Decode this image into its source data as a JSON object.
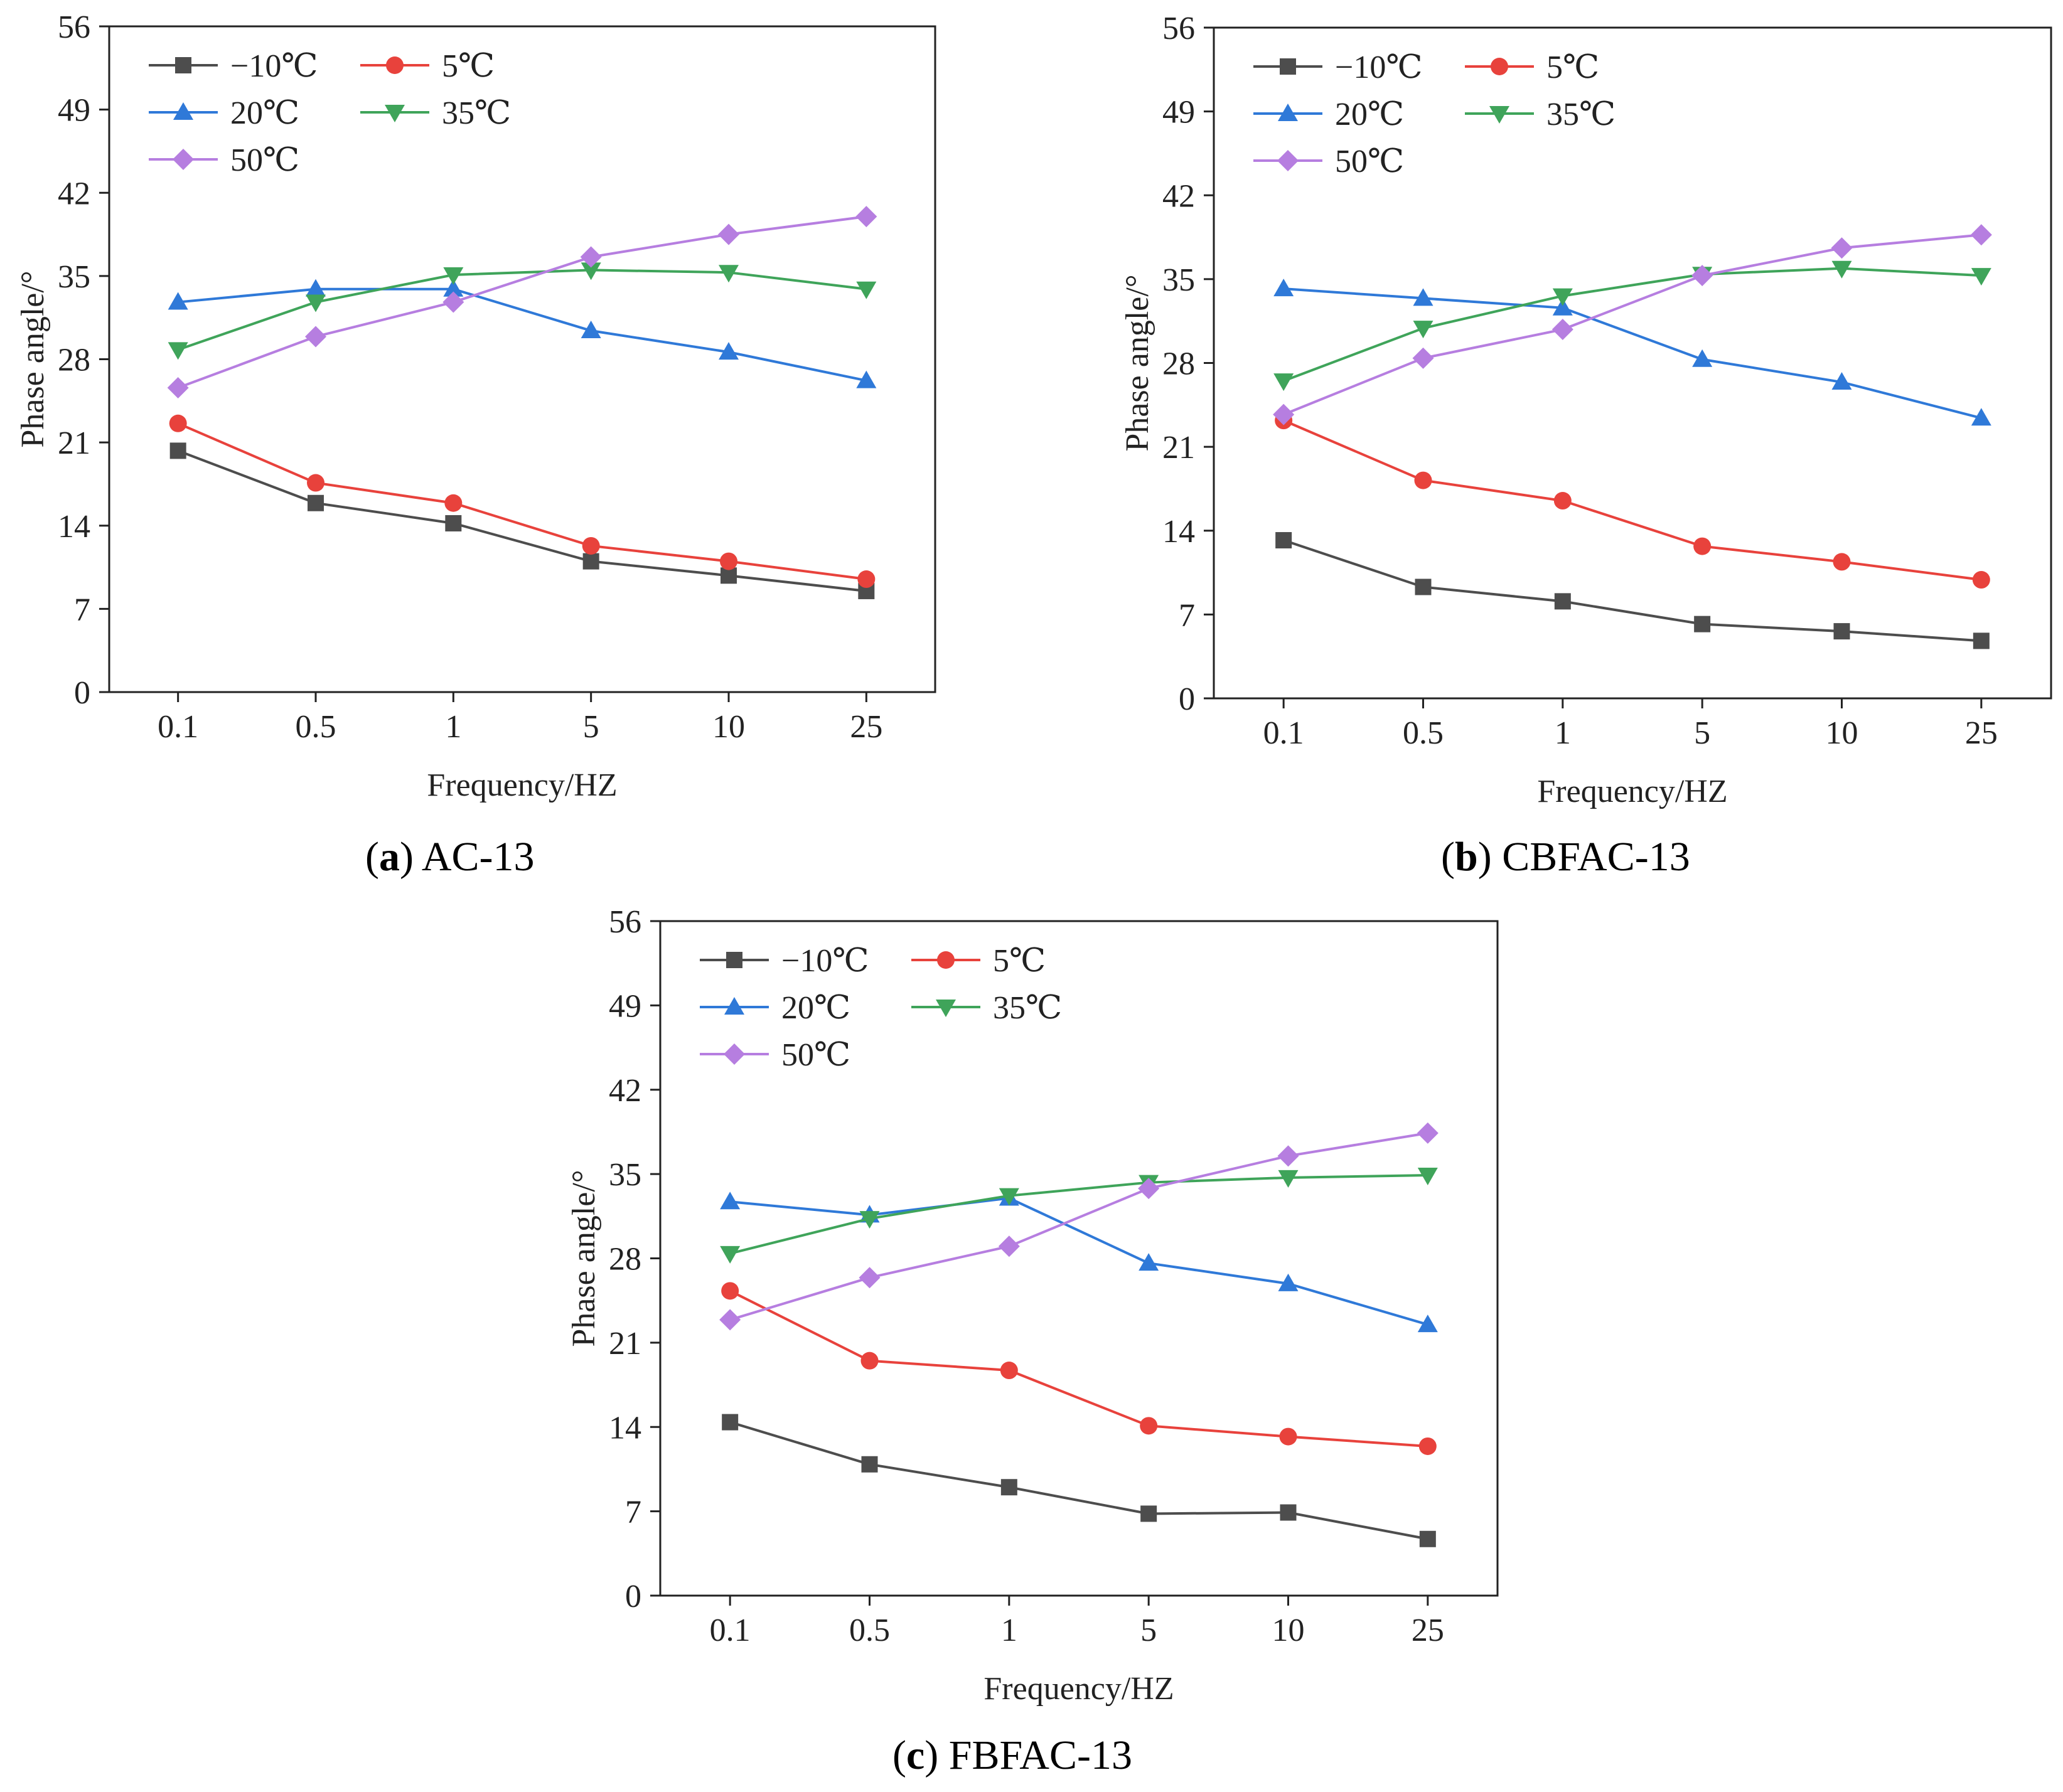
{
  "figure": {
    "panels": [
      {
        "letter": "a",
        "name": "AC-13"
      },
      {
        "letter": "b",
        "name": "CBFAC-13"
      },
      {
        "letter": "c",
        "name": "FBFAC-13"
      }
    ]
  },
  "series_style": [
    {
      "name": "−10℃",
      "color": "#4d4d4d",
      "marker": "square"
    },
    {
      "name": "5℃",
      "color": "#e8423c",
      "marker": "circle"
    },
    {
      "name": "20℃",
      "color": "#2f79d8",
      "marker": "triangle-up"
    },
    {
      "name": "35℃",
      "color": "#3fa45a",
      "marker": "triangle-down"
    },
    {
      "name": "50℃",
      "color": "#b67ee0",
      "marker": "diamond"
    }
  ],
  "chart_data": [
    {
      "type": "line",
      "title": "(a) AC-13",
      "xlabel": "Frequency/HZ",
      "ylabel": "Phase angle/°",
      "categories": [
        "0.1",
        "0.5",
        "1",
        "5",
        "10",
        "25"
      ],
      "ylim": [
        0,
        56
      ],
      "yticks": [
        "0",
        "7",
        "14",
        "21",
        "28",
        "35",
        "42",
        "49",
        "56"
      ],
      "series": [
        {
          "name": "−10℃",
          "values": [
            20.3,
            15.9,
            14.2,
            11.0,
            9.8,
            8.5
          ]
        },
        {
          "name": "5℃",
          "values": [
            22.6,
            17.6,
            15.9,
            12.3,
            11.0,
            9.5
          ]
        },
        {
          "name": "20℃",
          "values": [
            32.8,
            33.9,
            33.9,
            30.4,
            28.6,
            26.2
          ]
        },
        {
          "name": "35℃",
          "values": [
            28.8,
            32.8,
            35.1,
            35.5,
            35.3,
            33.9
          ]
        },
        {
          "name": "50℃",
          "values": [
            25.6,
            29.9,
            32.8,
            36.6,
            38.5,
            40.0
          ]
        }
      ]
    },
    {
      "type": "line",
      "title": "(b) CBFAC-13",
      "xlabel": "Frequency/HZ",
      "ylabel": "Phase angle/°",
      "categories": [
        "0.1",
        "0.5",
        "1",
        "5",
        "10",
        "25"
      ],
      "ylim": [
        0,
        56
      ],
      "yticks": [
        "0",
        "7",
        "14",
        "21",
        "28",
        "35",
        "42",
        "49",
        "56"
      ],
      "series": [
        {
          "name": "−10℃",
          "values": [
            13.2,
            9.3,
            8.1,
            6.2,
            5.6,
            4.8
          ]
        },
        {
          "name": "5℃",
          "values": [
            23.2,
            18.2,
            16.5,
            12.7,
            11.4,
            9.9
          ]
        },
        {
          "name": "20℃",
          "values": [
            34.2,
            33.4,
            32.6,
            28.3,
            26.4,
            23.4
          ]
        },
        {
          "name": "35℃",
          "values": [
            26.5,
            30.9,
            33.6,
            35.4,
            35.9,
            35.3
          ]
        },
        {
          "name": "50℃",
          "values": [
            23.7,
            28.4,
            30.8,
            35.3,
            37.6,
            38.7
          ]
        }
      ]
    },
    {
      "type": "line",
      "title": "(c) FBFAC-13",
      "xlabel": "Frequency/HZ",
      "ylabel": "Phase angle/°",
      "categories": [
        "0.1",
        "0.5",
        "1",
        "5",
        "10",
        "25"
      ],
      "ylim": [
        0,
        56
      ],
      "yticks": [
        "0",
        "7",
        "14",
        "21",
        "28",
        "35",
        "42",
        "49",
        "56"
      ],
      "series": [
        {
          "name": "−10℃",
          "values": [
            14.4,
            10.9,
            9.0,
            6.8,
            6.9,
            4.7
          ]
        },
        {
          "name": "5℃",
          "values": [
            25.3,
            19.5,
            18.7,
            14.1,
            13.2,
            12.4
          ]
        },
        {
          "name": "20℃",
          "values": [
            32.7,
            31.6,
            33.0,
            27.6,
            25.9,
            22.5
          ]
        },
        {
          "name": "35℃",
          "values": [
            28.4,
            31.3,
            33.2,
            34.3,
            34.7,
            34.9
          ]
        },
        {
          "name": "50℃",
          "values": [
            22.9,
            26.4,
            29.0,
            33.8,
            36.5,
            38.4
          ]
        }
      ]
    }
  ]
}
